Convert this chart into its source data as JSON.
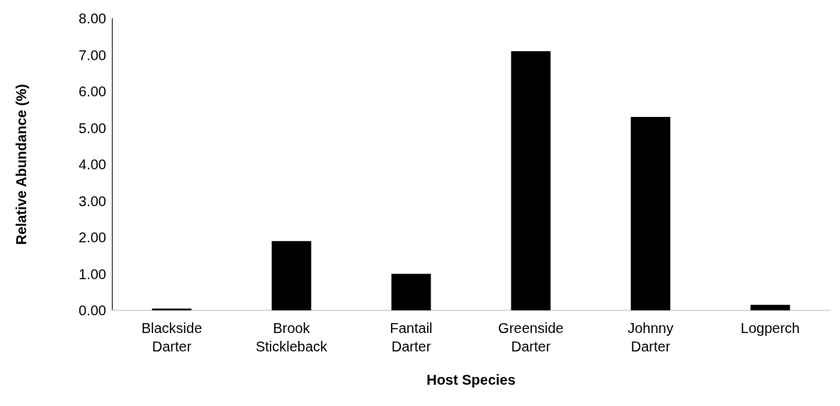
{
  "chart_data": {
    "type": "bar",
    "xlabel": "Host Species",
    "ylabel": "Relative Abundance (%)",
    "categories": [
      "Blackside Darter",
      "Brook Stickleback",
      "Fantail Darter",
      "Greenside Darter",
      "Johnny Darter",
      "Logperch"
    ],
    "values": [
      0.05,
      1.9,
      1.0,
      7.1,
      5.3,
      0.15
    ],
    "color": "#000000",
    "ylim": [
      0,
      8
    ],
    "yticks": [
      {
        "value": 0,
        "label": "0.00"
      },
      {
        "value": 1,
        "label": "1.00"
      },
      {
        "value": 2,
        "label": "2.00"
      },
      {
        "value": 3,
        "label": "3.00"
      },
      {
        "value": 4,
        "label": "4.00"
      },
      {
        "value": 5,
        "label": "5.00"
      },
      {
        "value": 6,
        "label": "6.00"
      },
      {
        "value": 7,
        "label": "7.00"
      },
      {
        "value": 8,
        "label": "8.00"
      }
    ],
    "grid": false
  }
}
